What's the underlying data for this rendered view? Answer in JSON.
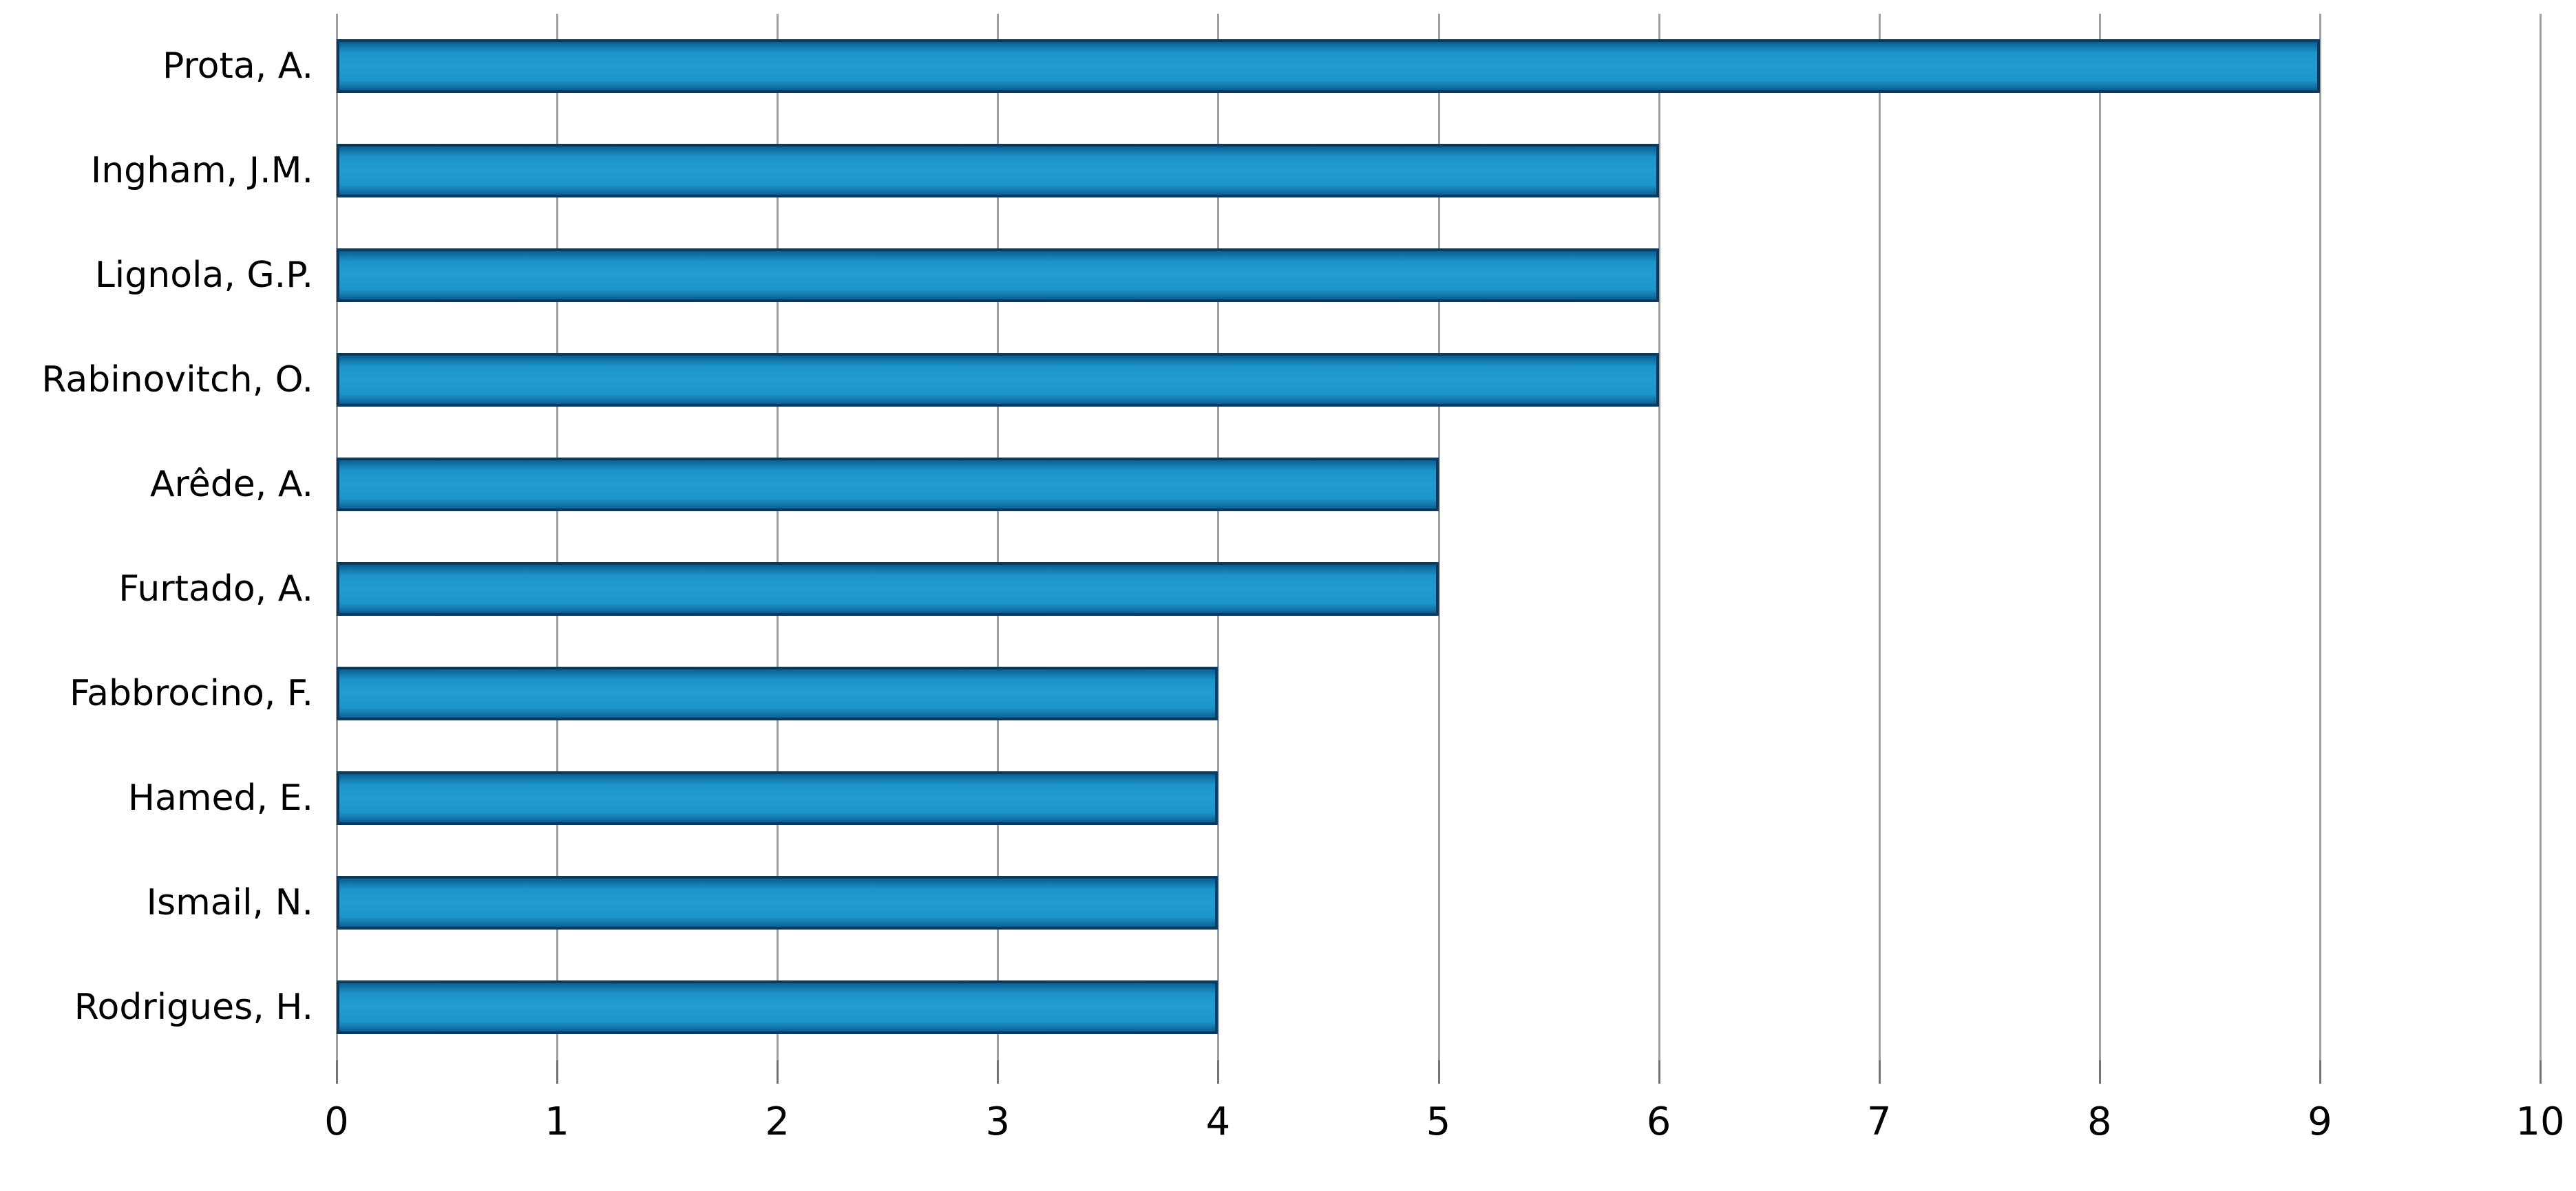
{
  "chart_data": {
    "type": "bar",
    "orientation": "horizontal",
    "title": "",
    "xlabel": "",
    "ylabel": "",
    "categories": [
      "Prota, A.",
      "Ingham, J.M.",
      "Lignola, G.P.",
      "Rabinovitch, O.",
      "Arêde, A.",
      "Furtado, A.",
      "Fabbrocino, F.",
      "Hamed, E.",
      "Ismail, N.",
      "Rodrigues, H."
    ],
    "values": [
      9,
      6,
      6,
      6,
      5,
      5,
      4,
      4,
      4,
      4
    ],
    "xlim": [
      0,
      10
    ],
    "xticks": [
      "0",
      "1",
      "2",
      "3",
      "4",
      "5",
      "6",
      "7",
      "8",
      "9",
      "10"
    ],
    "grid": "vertical-gridlines-on",
    "legend": "none",
    "colors": {
      "bar_fill": "#1b94cc",
      "bar_fill_highlight": "#229cd3",
      "bar_fill_shadow": "#0d5f92",
      "bar_border": "#0a3a5e",
      "gridline": "#9aa0a3",
      "tick_mark": "#6e7477",
      "text": "#000000",
      "background": "#ffffff"
    }
  }
}
